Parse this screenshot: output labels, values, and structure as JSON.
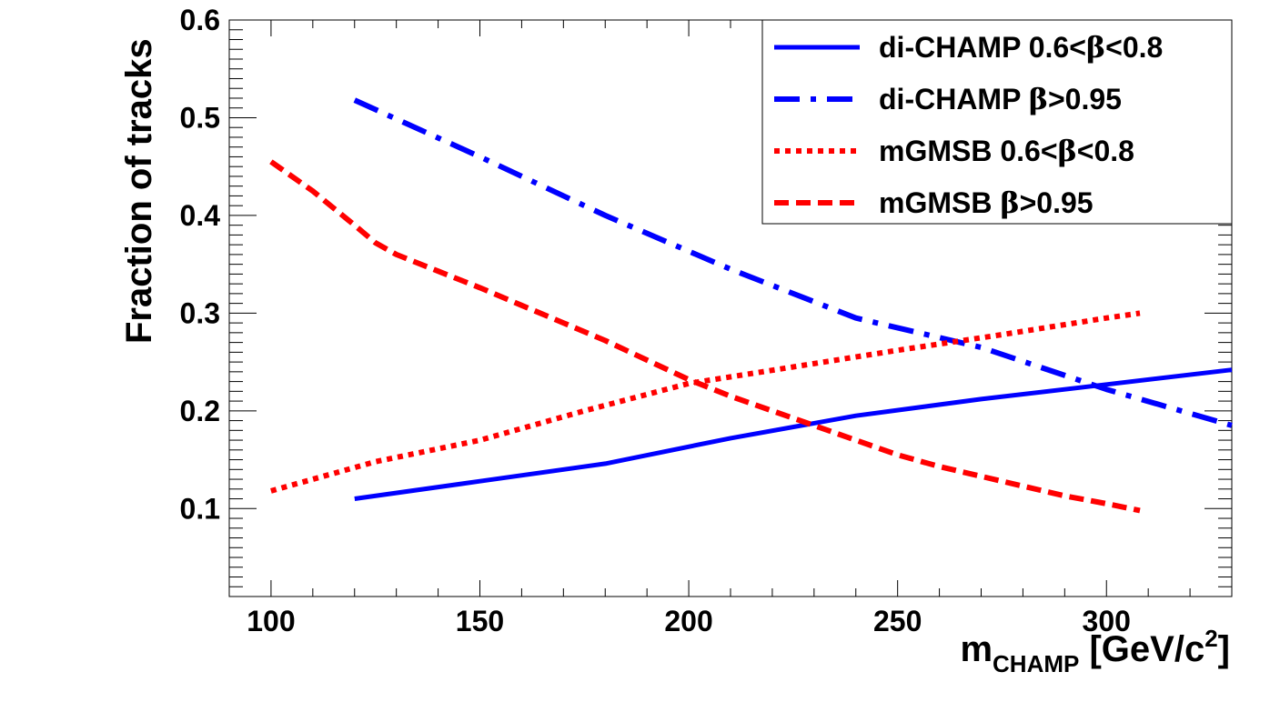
{
  "chart_data": {
    "type": "line",
    "title": "",
    "xlabel": {
      "main": "m",
      "sub": "CHAMP",
      "unit_pre": " [GeV/c",
      "unit_sup": "2",
      "unit_post": "]"
    },
    "ylabel": "Fraction of tracks",
    "xlim": [
      90,
      330
    ],
    "ylim": [
      0.01,
      0.6
    ],
    "x_ticks": [
      100,
      150,
      200,
      250,
      300
    ],
    "x_tick_labels": [
      "100",
      "150",
      "200",
      "250",
      "300"
    ],
    "y_ticks": [
      0.1,
      0.2,
      0.3,
      0.4,
      0.5,
      0.6
    ],
    "y_tick_labels": [
      "0.1",
      "0.2",
      "0.3",
      "0.4",
      "0.5",
      "0.6"
    ],
    "legend_position": "top-right",
    "series": [
      {
        "name": "di-CHAMP 0.6<β<0.8",
        "label_parts": [
          "di-CHAMP 0.6<",
          "β",
          "<0.8"
        ],
        "color": "#0000ff",
        "style": "solid",
        "x": [
          120,
          150,
          180,
          210,
          240,
          270,
          300,
          330
        ],
        "y": [
          0.11,
          0.128,
          0.146,
          0.172,
          0.195,
          0.212,
          0.227,
          0.242
        ]
      },
      {
        "name": "di-CHAMP β>0.95",
        "label_parts": [
          "di-CHAMP ",
          "β",
          ">0.95"
        ],
        "color": "#0000ff",
        "style": "dashdot",
        "x": [
          120,
          150,
          180,
          210,
          240,
          270,
          300,
          330
        ],
        "y": [
          0.518,
          0.46,
          0.4,
          0.345,
          0.295,
          0.265,
          0.222,
          0.185
        ]
      },
      {
        "name": "mGMSB 0.6<β<0.8",
        "label_parts": [
          "mGMSB 0.6<",
          "β",
          "<0.8"
        ],
        "color": "#ff0000",
        "style": "dotted",
        "x": [
          100,
          125,
          150,
          175,
          200,
          225,
          250,
          275,
          300,
          308
        ],
        "y": [
          0.118,
          0.148,
          0.17,
          0.2,
          0.228,
          0.245,
          0.262,
          0.278,
          0.295,
          0.3
        ]
      },
      {
        "name": "mGMSB β>0.95",
        "label_parts": [
          "mGMSB ",
          "β",
          ">0.95"
        ],
        "color": "#ff0000",
        "style": "dashed",
        "x": [
          100,
          110,
          120,
          125,
          130,
          140,
          150,
          160,
          170,
          180,
          190,
          200,
          210,
          220,
          230,
          240,
          250,
          260,
          270,
          280,
          290,
          300,
          308
        ],
        "y": [
          0.455,
          0.425,
          0.39,
          0.372,
          0.36,
          0.343,
          0.326,
          0.308,
          0.29,
          0.272,
          0.252,
          0.232,
          0.215,
          0.2,
          0.185,
          0.17,
          0.155,
          0.143,
          0.133,
          0.123,
          0.113,
          0.105,
          0.098
        ]
      }
    ]
  }
}
